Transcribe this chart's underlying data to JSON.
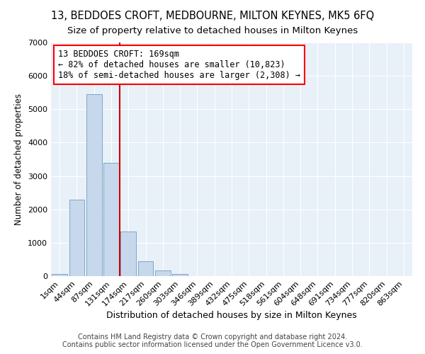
{
  "title": "13, BEDDOES CROFT, MEDBOURNE, MILTON KEYNES, MK5 6FQ",
  "subtitle": "Size of property relative to detached houses in Milton Keynes",
  "xlabel": "Distribution of detached houses by size in Milton Keynes",
  "ylabel": "Number of detached properties",
  "footer_line1": "Contains HM Land Registry data © Crown copyright and database right 2024.",
  "footer_line2": "Contains public sector information licensed under the Open Government Licence v3.0.",
  "annotation_line1": "13 BEDDOES CROFT: 169sqm",
  "annotation_line2": "← 82% of detached houses are smaller (10,823)",
  "annotation_line3": "18% of semi-detached houses are larger (2,308) →",
  "bar_color": "#c8d8ec",
  "bar_edge_color": "#7aa8c8",
  "vline_color": "#cc0000",
  "vline_x_index": 4,
  "categories": [
    "1sqm",
    "44sqm",
    "87sqm",
    "131sqm",
    "174sqm",
    "217sqm",
    "260sqm",
    "303sqm",
    "346sqm",
    "389sqm",
    "432sqm",
    "475sqm",
    "518sqm",
    "561sqm",
    "604sqm",
    "648sqm",
    "691sqm",
    "734sqm",
    "777sqm",
    "820sqm",
    "863sqm"
  ],
  "values": [
    60,
    2300,
    5450,
    3400,
    1330,
    450,
    160,
    65,
    10,
    0,
    0,
    0,
    0,
    0,
    0,
    0,
    0,
    0,
    0,
    0,
    0
  ],
  "ylim": [
    0,
    7000
  ],
  "yticks": [
    0,
    1000,
    2000,
    3000,
    4000,
    5000,
    6000,
    7000
  ],
  "fig_bg_color": "#ffffff",
  "plot_bg_color": "#e8f0f8",
  "grid_color": "#ffffff",
  "title_fontsize": 10.5,
  "subtitle_fontsize": 9.5,
  "xlabel_fontsize": 9,
  "ylabel_fontsize": 8.5,
  "tick_fontsize": 8,
  "footer_fontsize": 7,
  "annot_fontsize": 8.5
}
